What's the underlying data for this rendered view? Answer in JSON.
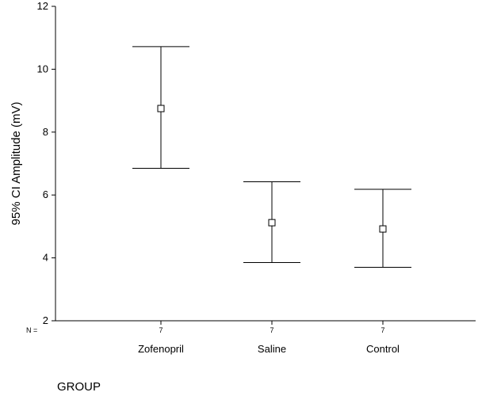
{
  "chart_data": {
    "type": "errorbar",
    "title": "",
    "xlabel": "GROUP",
    "ylabel": "95% CI Amplitude (mV)",
    "ylim": [
      2,
      12
    ],
    "yticks": [
      2,
      4,
      6,
      8,
      10,
      12
    ],
    "n_prefix": "N =",
    "categories": [
      "Zofenopril",
      "Saline",
      "Control"
    ],
    "n": [
      "7",
      "7",
      "7"
    ],
    "mean": [
      8.75,
      5.12,
      4.92
    ],
    "ci_lower": [
      6.85,
      3.85,
      3.7
    ],
    "ci_upper": [
      10.72,
      6.42,
      6.18
    ],
    "grid": false,
    "legend": "none"
  }
}
